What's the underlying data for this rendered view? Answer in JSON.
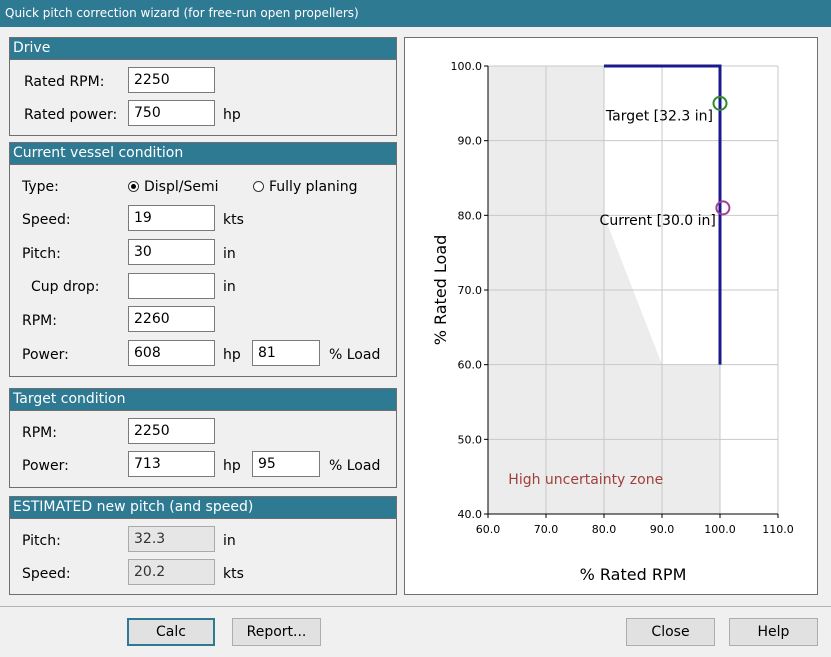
{
  "window": {
    "title": "Quick pitch correction wizard (for free-run open propellers)"
  },
  "drive": {
    "header": "Drive",
    "rated_rpm_label": "Rated RPM:",
    "rated_rpm": "2250",
    "rated_power_label": "Rated power:",
    "rated_power": "750",
    "rated_power_unit": "hp"
  },
  "current": {
    "header": "Current vessel condition",
    "type_label": "Type:",
    "type_options": [
      "Displ/Semi",
      "Fully planing"
    ],
    "type_selected": "Displ/Semi",
    "speed_label": "Speed:",
    "speed": "19",
    "speed_unit": "kts",
    "pitch_label": "Pitch:",
    "pitch": "30",
    "pitch_unit": "in",
    "cupdrop_label": "Cup drop:",
    "cupdrop": "",
    "cupdrop_unit": "in",
    "rpm_label": "RPM:",
    "rpm": "2260",
    "power_label": "Power:",
    "power": "608",
    "power_unit": "hp",
    "load": "81",
    "load_unit": "% Load"
  },
  "target": {
    "header": "Target condition",
    "rpm_label": "RPM:",
    "rpm": "2250",
    "power_label": "Power:",
    "power": "713",
    "power_unit": "hp",
    "load": "95",
    "load_unit": "% Load"
  },
  "estimated": {
    "header": "ESTIMATED new pitch (and speed)",
    "pitch_label": "Pitch:",
    "pitch": "32.3",
    "pitch_unit": "in",
    "speed_label": "Speed:",
    "speed": "20.2",
    "speed_unit": "kts"
  },
  "buttons": {
    "calc": "Calc",
    "report": "Report...",
    "close": "Close",
    "help": "Help"
  },
  "chart_data": {
    "type": "line",
    "xlabel": "% Rated RPM",
    "ylabel": "% Rated Load",
    "xlim": [
      60,
      110
    ],
    "ylim": [
      40,
      100
    ],
    "x_ticks": [
      "60.0",
      "70.0",
      "80.0",
      "90.0",
      "100.0",
      "110.0"
    ],
    "y_ticks": [
      "40.0",
      "50.0",
      "60.0",
      "70.0",
      "80.0",
      "90.0",
      "100.0"
    ],
    "grid": true,
    "limit_line": {
      "x": [
        80,
        100,
        100
      ],
      "y": [
        100,
        100,
        60
      ],
      "color": "#1a1a8c"
    },
    "points": [
      {
        "label": "Target [32.3 in]",
        "x": 100,
        "y": 95,
        "color": "#2e8b2e"
      },
      {
        "label": "Current [30.0 in]",
        "x": 100.5,
        "y": 81,
        "color": "#9b3f9b"
      }
    ],
    "zone": {
      "label": "High uncertainty zone",
      "label_color": "#a0403a",
      "fill": "#ececec",
      "polygon": [
        [
          60,
          100
        ],
        [
          80,
          100
        ],
        [
          80,
          80
        ],
        [
          90,
          60
        ],
        [
          100,
          60
        ],
        [
          100,
          40
        ],
        [
          60,
          40
        ]
      ]
    }
  }
}
